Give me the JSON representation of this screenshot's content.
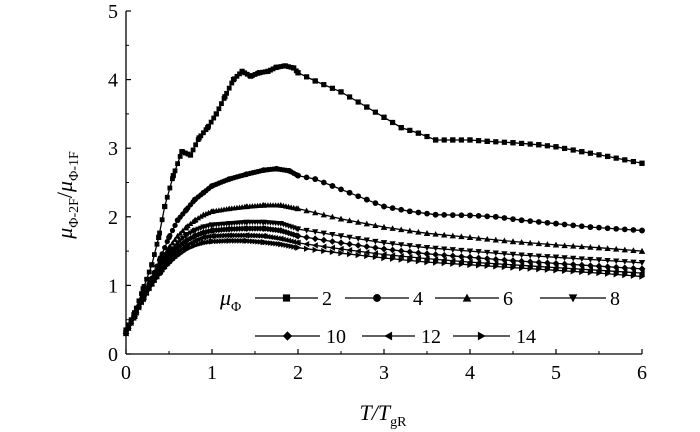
{
  "chart_data": {
    "type": "line",
    "title": "",
    "xlabel": {
      "base": "T/T",
      "sub": "gR"
    },
    "ylabel": {
      "num": "μ",
      "num_sub": "Φ-2F",
      "sep": "/",
      "den": "μ",
      "den_sub": "Φ-1F"
    },
    "xlim": [
      0,
      6
    ],
    "ylim": [
      0,
      5
    ],
    "xticks": [
      "0",
      "1",
      "2",
      "3",
      "4",
      "5",
      "6"
    ],
    "yticks": [
      "0",
      "1",
      "2",
      "3",
      "4",
      "5"
    ],
    "grid": false,
    "legend": {
      "placement": "bottom-right",
      "symbol": "μ",
      "symbol_sub": "Φ"
    },
    "series": [
      {
        "name": "2",
        "marker": "square",
        "points": [
          [
            0,
            0.35
          ],
          [
            0.1,
            0.6
          ],
          [
            0.2,
            0.95
          ],
          [
            0.3,
            1.3
          ],
          [
            0.38,
            1.7
          ],
          [
            0.45,
            2.15
          ],
          [
            0.55,
            2.6
          ],
          [
            0.65,
            2.95
          ],
          [
            0.75,
            2.9
          ],
          [
            0.85,
            3.15
          ],
          [
            0.95,
            3.3
          ],
          [
            1.05,
            3.5
          ],
          [
            1.15,
            3.75
          ],
          [
            1.25,
            4.0
          ],
          [
            1.35,
            4.12
          ],
          [
            1.45,
            4.05
          ],
          [
            1.55,
            4.1
          ],
          [
            1.65,
            4.12
          ],
          [
            1.75,
            4.18
          ],
          [
            1.85,
            4.2
          ],
          [
            1.95,
            4.17
          ],
          [
            2.0,
            4.1
          ],
          [
            2.2,
            3.98
          ],
          [
            2.5,
            3.82
          ],
          [
            2.8,
            3.6
          ],
          [
            3.0,
            3.45
          ],
          [
            3.2,
            3.3
          ],
          [
            3.4,
            3.22
          ],
          [
            3.6,
            3.12
          ],
          [
            3.8,
            3.12
          ],
          [
            4.0,
            3.12
          ],
          [
            4.2,
            3.1
          ],
          [
            4.5,
            3.08
          ],
          [
            4.8,
            3.05
          ],
          [
            5.0,
            3.02
          ],
          [
            5.3,
            2.95
          ],
          [
            5.6,
            2.88
          ],
          [
            6.0,
            2.78
          ]
        ]
      },
      {
        "name": "4",
        "marker": "circle",
        "points": [
          [
            0,
            0.3
          ],
          [
            0.1,
            0.55
          ],
          [
            0.2,
            0.85
          ],
          [
            0.3,
            1.1
          ],
          [
            0.4,
            1.4
          ],
          [
            0.5,
            1.7
          ],
          [
            0.6,
            1.95
          ],
          [
            0.7,
            2.1
          ],
          [
            0.8,
            2.25
          ],
          [
            0.9,
            2.35
          ],
          [
            1.0,
            2.45
          ],
          [
            1.2,
            2.55
          ],
          [
            1.4,
            2.62
          ],
          [
            1.6,
            2.68
          ],
          [
            1.75,
            2.7
          ],
          [
            1.9,
            2.67
          ],
          [
            2.0,
            2.6
          ],
          [
            2.2,
            2.55
          ],
          [
            2.4,
            2.45
          ],
          [
            2.6,
            2.35
          ],
          [
            2.8,
            2.25
          ],
          [
            3.0,
            2.15
          ],
          [
            3.3,
            2.08
          ],
          [
            3.6,
            2.03
          ],
          [
            4.0,
            2.02
          ],
          [
            4.3,
            2.0
          ],
          [
            4.6,
            1.95
          ],
          [
            5.0,
            1.9
          ],
          [
            5.4,
            1.85
          ],
          [
            6.0,
            1.8
          ]
        ]
      },
      {
        "name": "6",
        "marker": "triangle-up",
        "points": [
          [
            0,
            0.3
          ],
          [
            0.1,
            0.55
          ],
          [
            0.2,
            0.85
          ],
          [
            0.3,
            1.1
          ],
          [
            0.4,
            1.35
          ],
          [
            0.5,
            1.55
          ],
          [
            0.6,
            1.72
          ],
          [
            0.7,
            1.85
          ],
          [
            0.8,
            1.95
          ],
          [
            0.9,
            2.03
          ],
          [
            1.0,
            2.08
          ],
          [
            1.2,
            2.12
          ],
          [
            1.4,
            2.15
          ],
          [
            1.6,
            2.17
          ],
          [
            1.8,
            2.17
          ],
          [
            2.0,
            2.12
          ],
          [
            2.5,
            1.97
          ],
          [
            3.0,
            1.85
          ],
          [
            3.5,
            1.76
          ],
          [
            4.0,
            1.7
          ],
          [
            4.5,
            1.64
          ],
          [
            5.0,
            1.59
          ],
          [
            5.5,
            1.55
          ],
          [
            6.0,
            1.5
          ]
        ]
      },
      {
        "name": "8",
        "marker": "triangle-down",
        "points": [
          [
            0,
            0.3
          ],
          [
            0.1,
            0.55
          ],
          [
            0.2,
            0.82
          ],
          [
            0.3,
            1.08
          ],
          [
            0.4,
            1.3
          ],
          [
            0.5,
            1.48
          ],
          [
            0.6,
            1.62
          ],
          [
            0.7,
            1.73
          ],
          [
            0.8,
            1.8
          ],
          [
            0.9,
            1.85
          ],
          [
            1.0,
            1.88
          ],
          [
            1.2,
            1.9
          ],
          [
            1.4,
            1.92
          ],
          [
            1.6,
            1.92
          ],
          [
            1.8,
            1.9
          ],
          [
            2.0,
            1.82
          ],
          [
            2.5,
            1.72
          ],
          [
            3.0,
            1.62
          ],
          [
            3.5,
            1.55
          ],
          [
            4.0,
            1.5
          ],
          [
            4.5,
            1.45
          ],
          [
            5.0,
            1.41
          ],
          [
            5.5,
            1.37
          ],
          [
            6.0,
            1.33
          ]
        ]
      },
      {
        "name": "10",
        "marker": "diamond",
        "points": [
          [
            0,
            0.3
          ],
          [
            0.1,
            0.55
          ],
          [
            0.2,
            0.82
          ],
          [
            0.3,
            1.05
          ],
          [
            0.4,
            1.25
          ],
          [
            0.5,
            1.42
          ],
          [
            0.6,
            1.55
          ],
          [
            0.7,
            1.65
          ],
          [
            0.8,
            1.72
          ],
          [
            0.9,
            1.77
          ],
          [
            1.0,
            1.8
          ],
          [
            1.2,
            1.82
          ],
          [
            1.4,
            1.83
          ],
          [
            1.6,
            1.83
          ],
          [
            1.8,
            1.8
          ],
          [
            2.0,
            1.72
          ],
          [
            2.5,
            1.62
          ],
          [
            3.0,
            1.53
          ],
          [
            3.5,
            1.46
          ],
          [
            4.0,
            1.41
          ],
          [
            4.5,
            1.36
          ],
          [
            5.0,
            1.32
          ],
          [
            5.5,
            1.28
          ],
          [
            6.0,
            1.24
          ]
        ]
      },
      {
        "name": "12",
        "marker": "triangle-left",
        "points": [
          [
            0,
            0.3
          ],
          [
            0.1,
            0.55
          ],
          [
            0.2,
            0.8
          ],
          [
            0.3,
            1.02
          ],
          [
            0.4,
            1.2
          ],
          [
            0.5,
            1.36
          ],
          [
            0.6,
            1.48
          ],
          [
            0.7,
            1.58
          ],
          [
            0.8,
            1.65
          ],
          [
            0.9,
            1.7
          ],
          [
            1.0,
            1.72
          ],
          [
            1.2,
            1.73
          ],
          [
            1.4,
            1.73
          ],
          [
            1.6,
            1.72
          ],
          [
            1.8,
            1.68
          ],
          [
            2.0,
            1.62
          ],
          [
            2.5,
            1.53
          ],
          [
            3.0,
            1.45
          ],
          [
            3.5,
            1.39
          ],
          [
            4.0,
            1.34
          ],
          [
            4.5,
            1.3
          ],
          [
            5.0,
            1.26
          ],
          [
            5.5,
            1.22
          ],
          [
            6.0,
            1.18
          ]
        ]
      },
      {
        "name": "14",
        "marker": "triangle-right",
        "points": [
          [
            0,
            0.3
          ],
          [
            0.1,
            0.55
          ],
          [
            0.2,
            0.78
          ],
          [
            0.3,
            1.0
          ],
          [
            0.4,
            1.17
          ],
          [
            0.5,
            1.32
          ],
          [
            0.6,
            1.43
          ],
          [
            0.7,
            1.52
          ],
          [
            0.8,
            1.58
          ],
          [
            0.9,
            1.62
          ],
          [
            1.0,
            1.64
          ],
          [
            1.2,
            1.65
          ],
          [
            1.4,
            1.65
          ],
          [
            1.6,
            1.63
          ],
          [
            1.8,
            1.6
          ],
          [
            2.0,
            1.55
          ],
          [
            2.5,
            1.47
          ],
          [
            3.0,
            1.4
          ],
          [
            3.5,
            1.34
          ],
          [
            4.0,
            1.3
          ],
          [
            4.5,
            1.26
          ],
          [
            5.0,
            1.22
          ],
          [
            5.5,
            1.18
          ],
          [
            6.0,
            1.13
          ]
        ]
      }
    ]
  }
}
